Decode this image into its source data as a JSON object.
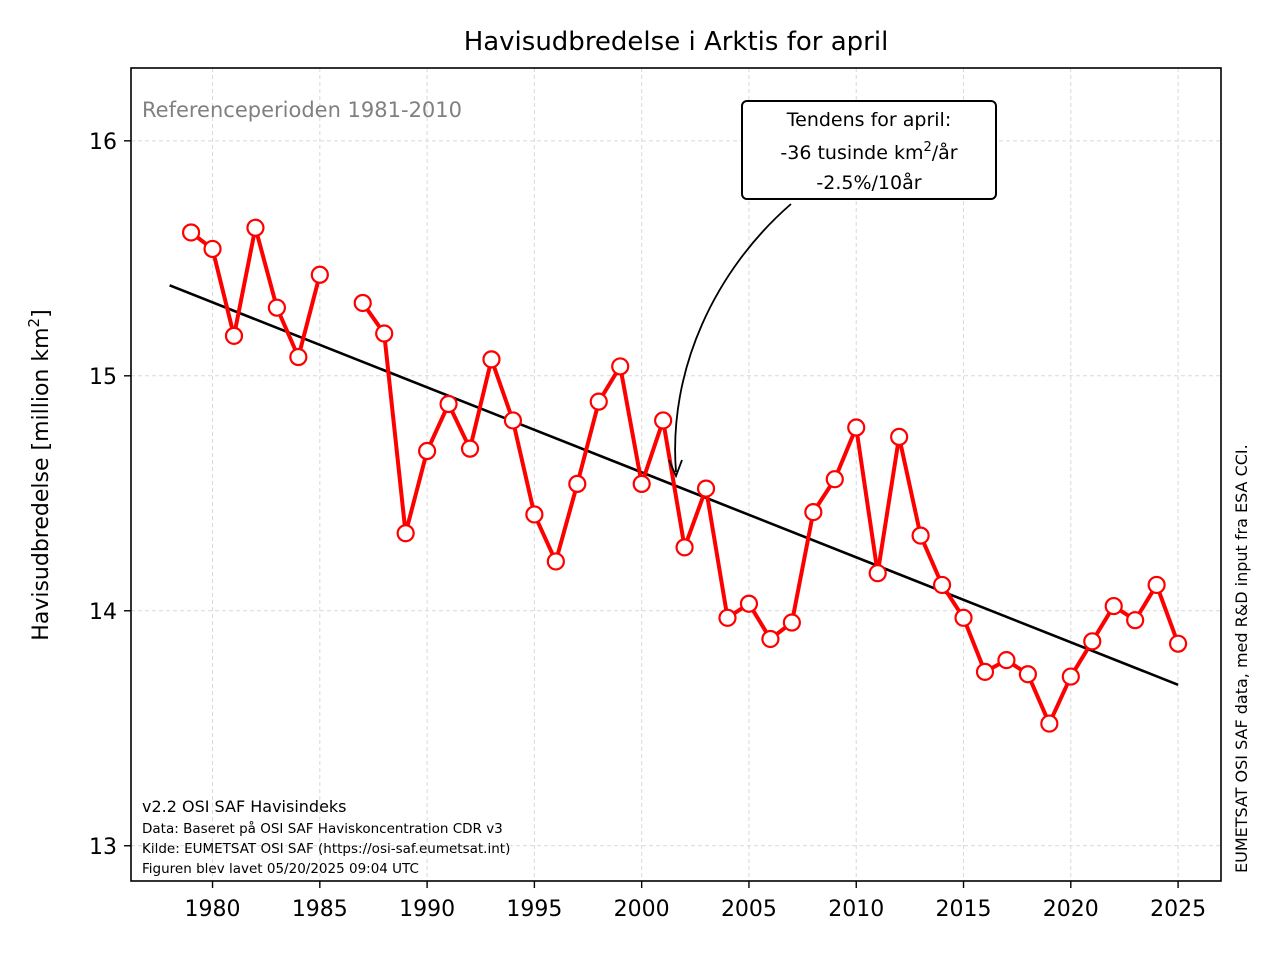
{
  "chart_data": {
    "type": "line",
    "title": "Havisudbredelse i Arktis for april",
    "ylabel": "Havisudbredelse [million km²]",
    "ylabel_main": "Havisudbredelse [million km",
    "ylabel_sup": "2",
    "ylabel_close": "]",
    "xlabel": "",
    "xlim": [
      1976.2,
      2027.0
    ],
    "ylim": [
      12.85,
      16.31
    ],
    "x_ticks": [
      1980,
      1985,
      1990,
      1995,
      2000,
      2005,
      2010,
      2015,
      2020,
      2025
    ],
    "y_ticks": [
      13,
      14,
      15,
      16
    ],
    "grid": true,
    "series": [
      {
        "name": "",
        "color": "#ff0000",
        "marker": "open-circle",
        "x": [
          1979,
          1980,
          1981,
          1982,
          1983,
          1984,
          1985,
          1986,
          1987,
          1988,
          1989,
          1990,
          1991,
          1992,
          1993,
          1994,
          1995,
          1996,
          1997,
          1998,
          1999,
          2000,
          2001,
          2002,
          2003,
          2004,
          2005,
          2006,
          2007,
          2008,
          2009,
          2010,
          2011,
          2012,
          2013,
          2014,
          2015,
          2016,
          2017,
          2018,
          2019,
          2020,
          2021,
          2022,
          2023,
          2024,
          2025
        ],
        "values": [
          15.61,
          15.54,
          15.17,
          15.63,
          15.29,
          15.08,
          15.43,
          null,
          15.31,
          15.18,
          14.33,
          14.68,
          14.88,
          14.69,
          15.07,
          14.81,
          14.41,
          14.21,
          14.54,
          14.89,
          15.04,
          14.54,
          14.81,
          14.27,
          14.52,
          13.97,
          14.03,
          13.88,
          13.95,
          14.42,
          14.56,
          14.78,
          14.16,
          14.74,
          14.32,
          14.11,
          13.97,
          13.74,
          13.79,
          13.73,
          13.52,
          13.72,
          13.87,
          14.02,
          13.96,
          14.11,
          13.86
        ]
      }
    ],
    "trend": {
      "color": "#000000",
      "x": [
        1978,
        2025
      ],
      "values": [
        15.385,
        13.685
      ]
    },
    "annotations": {
      "reference_period": "Referenceperioden 1981-2010",
      "trend_box_line1": "Tendens for april:",
      "trend_box_line2_pre": "-36 tusinde km",
      "trend_box_line2_sup": "2",
      "trend_box_line2_post": "/år",
      "trend_box_line3": "-2.5%/10år",
      "arrow_target": {
        "x": 2001.5,
        "y": 14.56
      },
      "footer": [
        "v2.2 OSI SAF Havisindeks",
        "Data: Baseret på OSI SAF Haviskoncentration CDR v3",
        "Kilde: EUMETSAT OSI SAF (https://osi-saf.eumetsat.int)",
        "Figuren blev lavet 05/20/2025 09:04 UTC"
      ],
      "side_note": "EUMETSAT OSI SAF data, med R&D input fra ESA CCI."
    }
  }
}
